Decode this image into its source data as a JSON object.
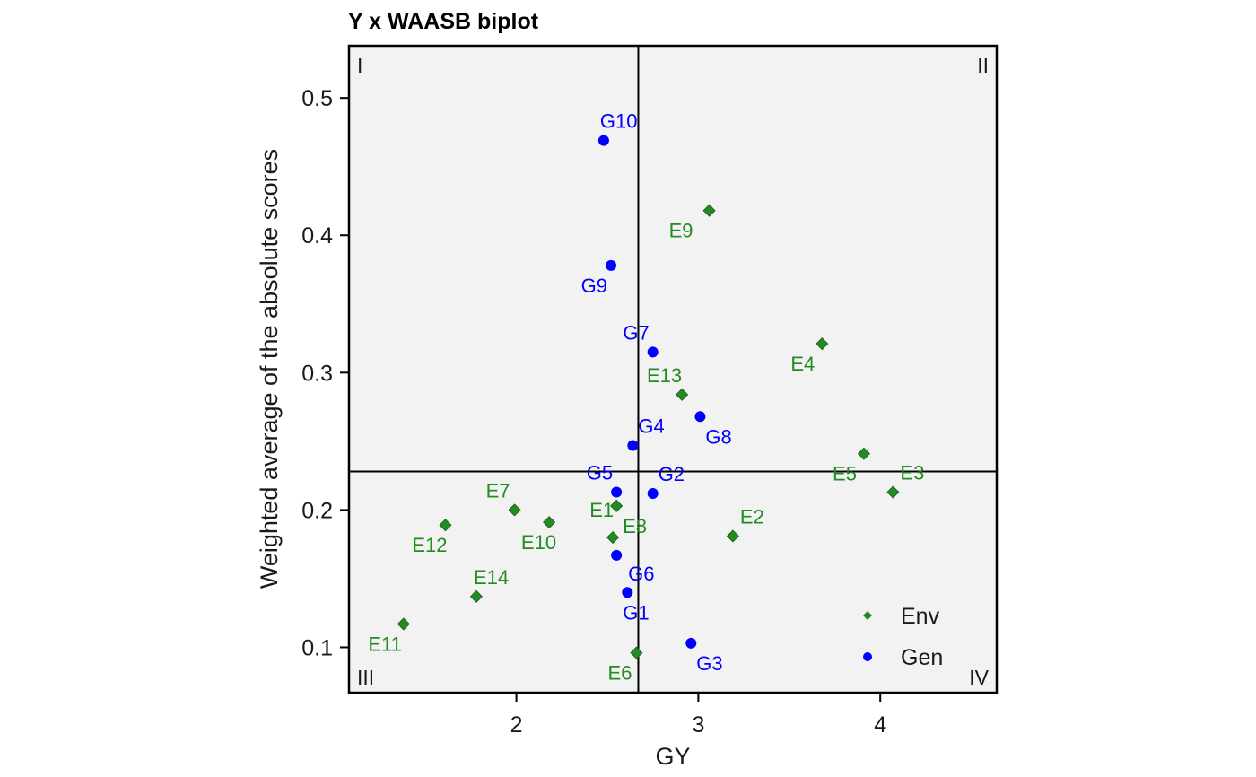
{
  "chart_data": {
    "type": "scatter",
    "title": "Y x WAASB biplot",
    "xlabel": "GY",
    "ylabel": "Weighted average of the absolute scores",
    "xlim": [
      1.08,
      4.64
    ],
    "ylim": [
      0.067,
      0.538
    ],
    "xticks": [
      2,
      3,
      4
    ],
    "yticks": [
      0.1,
      0.2,
      0.3,
      0.4,
      0.5
    ],
    "grid": false,
    "reference_lines": {
      "x": 2.67,
      "y": 0.228
    },
    "quadrant_labels": [
      "I",
      "II",
      "III",
      "IV"
    ],
    "legend_position": "bottom-right",
    "colors": {
      "env": "#228B22",
      "gen": "#0000FF",
      "panel": "#F2F2F2"
    },
    "series": [
      {
        "name": "Env",
        "marker": "diamond",
        "points": [
          {
            "label": "E1",
            "x": 2.55,
            "y": 0.203
          },
          {
            "label": "E2",
            "x": 3.19,
            "y": 0.181
          },
          {
            "label": "E3",
            "x": 4.07,
            "y": 0.213
          },
          {
            "label": "E4",
            "x": 3.68,
            "y": 0.321
          },
          {
            "label": "E5",
            "x": 3.91,
            "y": 0.241
          },
          {
            "label": "E6",
            "x": 2.66,
            "y": 0.096
          },
          {
            "label": "E7",
            "x": 1.99,
            "y": 0.2
          },
          {
            "label": "E8",
            "x": 2.53,
            "y": 0.18
          },
          {
            "label": "E9",
            "x": 3.06,
            "y": 0.418
          },
          {
            "label": "E10",
            "x": 2.18,
            "y": 0.191
          },
          {
            "label": "E11",
            "x": 1.38,
            "y": 0.117
          },
          {
            "label": "E12",
            "x": 1.61,
            "y": 0.189
          },
          {
            "label": "E13",
            "x": 2.91,
            "y": 0.284
          },
          {
            "label": "E14",
            "x": 1.78,
            "y": 0.137
          }
        ]
      },
      {
        "name": "Gen",
        "marker": "circle",
        "points": [
          {
            "label": "G1",
            "x": 2.61,
            "y": 0.14
          },
          {
            "label": "G2",
            "x": 2.75,
            "y": 0.212
          },
          {
            "label": "G3",
            "x": 2.96,
            "y": 0.103
          },
          {
            "label": "G4",
            "x": 2.64,
            "y": 0.247
          },
          {
            "label": "G5",
            "x": 2.55,
            "y": 0.213
          },
          {
            "label": "G6",
            "x": 2.55,
            "y": 0.167
          },
          {
            "label": "G7",
            "x": 2.75,
            "y": 0.315
          },
          {
            "label": "G8",
            "x": 3.01,
            "y": 0.268
          },
          {
            "label": "G9",
            "x": 2.52,
            "y": 0.378
          },
          {
            "label": "G10",
            "x": 2.48,
            "y": 0.469
          }
        ]
      }
    ]
  }
}
